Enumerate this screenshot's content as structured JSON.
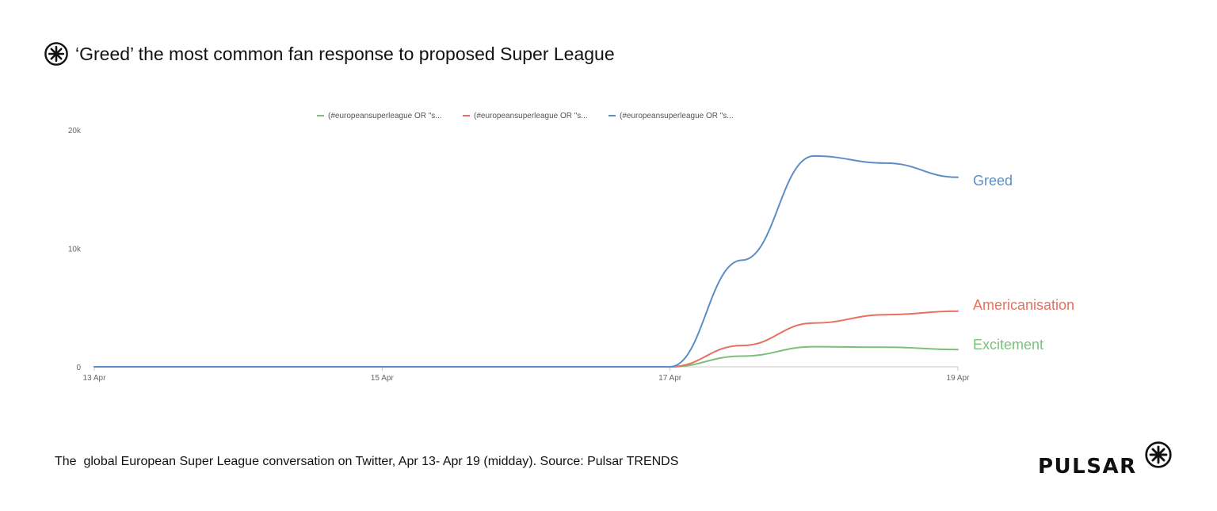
{
  "header": {
    "title": "‘Greed’ the most common fan response to proposed Super League",
    "icon": "pulsar-burst-icon"
  },
  "caption": "The  global European Super League conversation on Twitter, Apr 13- Apr 19 (midday). Source: Pulsar TRENDS",
  "brand": {
    "wordmark": "PULSAR",
    "icon": "pulsar-burst-icon"
  },
  "chart_data": {
    "type": "line",
    "title": "",
    "xlabel": "",
    "ylabel": "",
    "x_ticks": [
      "13 Apr",
      "15 Apr",
      "17 Apr",
      "19 Apr"
    ],
    "xlim": [
      "2021-04-13",
      "2021-04-19"
    ],
    "y_ticks": [
      {
        "value": 0,
        "label": "0"
      },
      {
        "value": 10000,
        "label": "10k"
      },
      {
        "value": 20000,
        "label": "20k"
      }
    ],
    "ylim": [
      0,
      20000
    ],
    "grid": false,
    "legend_position": "top-center",
    "x": [
      "2021-04-13",
      "2021-04-14",
      "2021-04-15",
      "2021-04-16",
      "2021-04-17",
      "2021-04-17 12:00",
      "2021-04-18",
      "2021-04-18 12:00",
      "2021-04-19"
    ],
    "series": [
      {
        "legend": "(#europeansuperleague OR \"s...",
        "end_label": "Excitement",
        "color": "#7dbf7d",
        "values": [
          0,
          0,
          0,
          0,
          0,
          900,
          1700,
          1650,
          1450
        ]
      },
      {
        "legend": "(#europeansuperleague OR \"s...",
        "end_label": "Americanisation",
        "color": "#e8705e",
        "values": [
          0,
          0,
          0,
          0,
          0,
          1800,
          3700,
          4400,
          4700
        ]
      },
      {
        "legend": "(#europeansuperleague OR \"s...",
        "end_label": "Greed",
        "color": "#5b8ec6",
        "values": [
          0,
          0,
          0,
          0,
          0,
          9000,
          17800,
          17200,
          16000
        ]
      }
    ]
  }
}
